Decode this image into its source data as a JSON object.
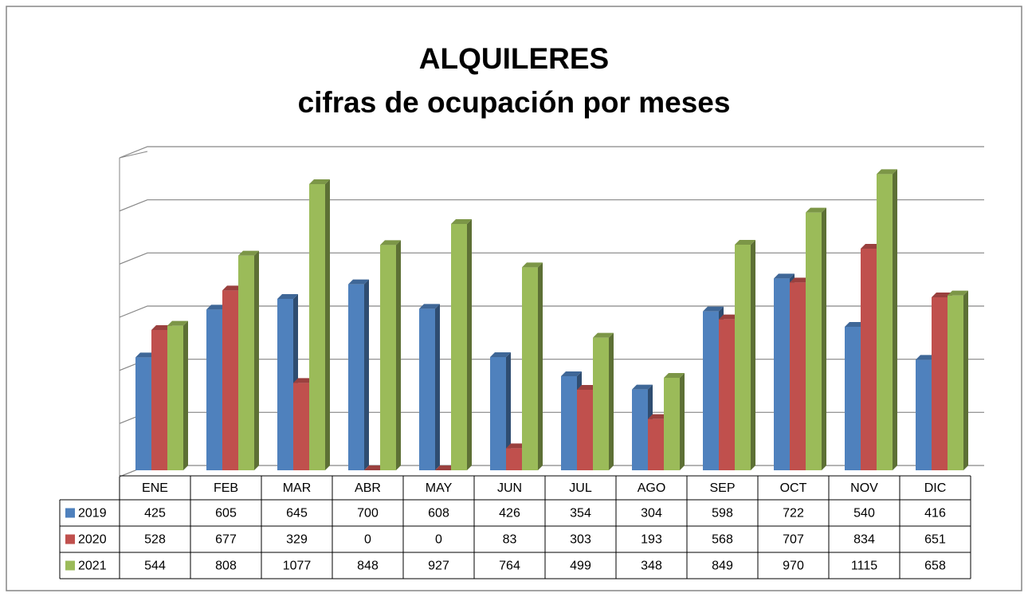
{
  "chart_data": {
    "type": "bar3d",
    "title": "ALQUILERES",
    "subtitle": "cifras de ocupación por meses",
    "categories": [
      "ENE",
      "FEB",
      "MAR",
      "ABR",
      "MAY",
      "JUN",
      "JUL",
      "AGO",
      "SEP",
      "OCT",
      "NOV",
      "DIC"
    ],
    "series": [
      {
        "name": "2019",
        "color": "#4f81bd",
        "values": [
          425,
          605,
          645,
          700,
          608,
          426,
          354,
          304,
          598,
          722,
          540,
          416
        ]
      },
      {
        "name": "2020",
        "color": "#c0504d",
        "values": [
          528,
          677,
          329,
          0,
          0,
          83,
          303,
          193,
          568,
          707,
          834,
          651
        ]
      },
      {
        "name": "2021",
        "color": "#9bbb59",
        "values": [
          544,
          808,
          1077,
          848,
          927,
          764,
          499,
          348,
          849,
          970,
          1115,
          658
        ]
      }
    ],
    "ylim": [
      0,
      1200
    ],
    "yticks": [
      0,
      200,
      400,
      600,
      800,
      1000,
      1200
    ],
    "grid": true
  }
}
